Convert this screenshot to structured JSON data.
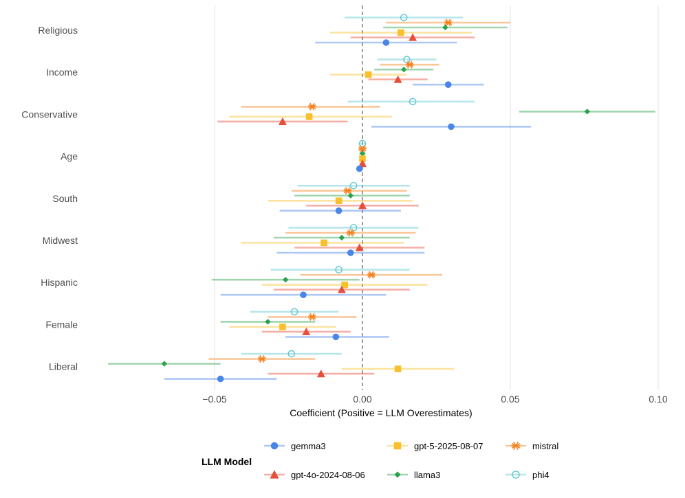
{
  "chart_data": {
    "type": "forest",
    "xlabel": "Coefficient (Positive = LLM Overestimates)",
    "xlim": [
      -0.095,
      0.1
    ],
    "x_ticks": [
      -0.05,
      0.0,
      0.05,
      0.1
    ],
    "x_tick_labels": [
      "−0.05",
      "0.00",
      "0.05",
      "0.10"
    ],
    "reference_line": 0,
    "categories": [
      "Religious",
      "Income",
      "Conservative",
      "Age",
      "South",
      "Midwest",
      "Hispanic",
      "Female",
      "Liberal"
    ],
    "legend_title": "LLM Model",
    "legend_placement": "bottom",
    "series": [
      {
        "name": "phi4",
        "color": "#5ec8d0",
        "marker": "open-circle",
        "estimates": [
          0.014,
          0.015,
          0.017,
          0.0,
          -0.003,
          -0.003,
          -0.008,
          -0.023,
          -0.024
        ],
        "lower": [
          -0.006,
          0.005,
          -0.005,
          -0.001,
          -0.022,
          -0.025,
          -0.031,
          -0.038,
          -0.041
        ],
        "upper": [
          0.034,
          0.025,
          0.038,
          0.001,
          0.016,
          0.019,
          0.016,
          -0.008,
          -0.007
        ]
      },
      {
        "name": "mistral",
        "color": "#f58220",
        "marker": "asterisk",
        "estimates": [
          0.029,
          0.016,
          -0.017,
          0.0,
          -0.005,
          -0.004,
          0.003,
          -0.017,
          -0.034
        ],
        "lower": [
          0.008,
          0.006,
          -0.041,
          -0.001,
          -0.024,
          -0.026,
          -0.021,
          -0.032,
          -0.052
        ],
        "upper": [
          0.05,
          0.026,
          0.006,
          0.001,
          0.015,
          0.018,
          0.027,
          -0.002,
          -0.016
        ]
      },
      {
        "name": "llama3",
        "color": "#2ca24d",
        "marker": "diamond",
        "estimates": [
          0.028,
          0.014,
          0.076,
          0.0,
          -0.004,
          -0.007,
          -0.026,
          -0.032,
          -0.067
        ],
        "lower": [
          0.007,
          0.004,
          0.053,
          -0.001,
          -0.023,
          -0.03,
          -0.051,
          -0.048,
          -0.086
        ],
        "upper": [
          0.049,
          0.024,
          0.099,
          0.001,
          0.016,
          0.016,
          -0.001,
          -0.016,
          -0.048
        ]
      },
      {
        "name": "gpt-5-2025-08-07",
        "color": "#f9c02c",
        "marker": "square",
        "estimates": [
          0.013,
          0.002,
          -0.018,
          0.0,
          -0.008,
          -0.013,
          -0.006,
          -0.027,
          0.012
        ],
        "lower": [
          -0.011,
          -0.011,
          -0.045,
          -0.001,
          -0.032,
          -0.041,
          -0.034,
          -0.045,
          -0.007
        ],
        "upper": [
          0.037,
          0.015,
          0.01,
          0.001,
          0.017,
          0.014,
          0.022,
          -0.009,
          0.031
        ]
      },
      {
        "name": "gpt-4o-2024-08-06",
        "color": "#e84e3c",
        "marker": "triangle",
        "estimates": [
          0.017,
          0.012,
          -0.027,
          0.0,
          0.0,
          -0.001,
          -0.007,
          -0.019,
          -0.014
        ],
        "lower": [
          -0.004,
          0.002,
          -0.049,
          -0.001,
          -0.019,
          -0.023,
          -0.03,
          -0.034,
          -0.032
        ],
        "upper": [
          0.038,
          0.022,
          -0.005,
          0.001,
          0.019,
          0.021,
          0.016,
          -0.004,
          0.004
        ]
      },
      {
        "name": "gemma3",
        "color": "#4a86e8",
        "marker": "circle",
        "estimates": [
          0.008,
          0.029,
          0.03,
          -0.001,
          -0.008,
          -0.004,
          -0.02,
          -0.009,
          -0.048
        ],
        "lower": [
          -0.016,
          0.017,
          0.003,
          -0.002,
          -0.028,
          -0.029,
          -0.048,
          -0.026,
          -0.067
        ],
        "upper": [
          0.032,
          0.041,
          0.057,
          0.0,
          0.013,
          0.021,
          0.008,
          0.009,
          -0.029
        ]
      }
    ],
    "legend_order": [
      "gemma3",
      "gpt-5-2025-08-07",
      "mistral",
      "gpt-4o-2024-08-06",
      "llama3",
      "phi4"
    ]
  }
}
